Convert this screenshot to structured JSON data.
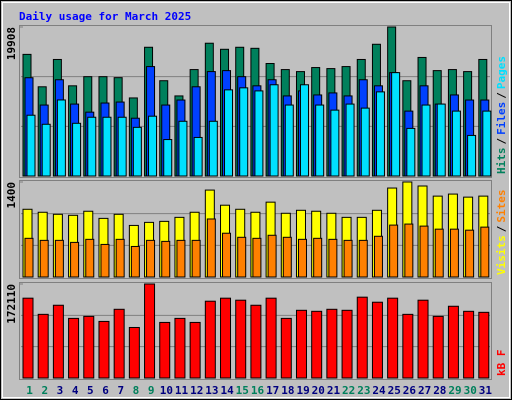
{
  "chart_data": [
    {
      "type": "bar",
      "title": "Daily usage for March 2025",
      "ylim": [
        0,
        19908
      ],
      "yticks": [
        19908
      ],
      "separator": "/",
      "series": [
        {
          "name": "Hits",
          "color": "#00805c",
          "values": [
            16250,
            11920,
            15570,
            12050,
            13270,
            13270,
            13140,
            10430,
            17200,
            12730,
            10700,
            14220,
            17740,
            16930,
            17200,
            17060,
            15030,
            14220,
            13950,
            14490,
            14350,
            14620,
            15570,
            17600,
            19908,
            12730,
            15840,
            14080,
            14220,
            13950,
            15570
          ]
        },
        {
          "name": "Files",
          "color": "#0040ff",
          "values": [
            13130,
            9480,
            12860,
            9610,
            8530,
            9750,
            9880,
            7720,
            14620,
            9480,
            10150,
            11920,
            13950,
            14080,
            13270,
            12050,
            12860,
            10700,
            11370,
            10830,
            11100,
            10700,
            12860,
            12050,
            13810,
            8670,
            12050,
            9610,
            10830,
            10150,
            10150
          ]
        },
        {
          "name": "Pages",
          "color": "#00e0ff",
          "values": [
            8120,
            6910,
            10160,
            7040,
            7850,
            7850,
            7850,
            6500,
            7990,
            4870,
            7310,
            5150,
            7310,
            11510,
            11780,
            11370,
            12190,
            9480,
            12190,
            9480,
            8800,
            9610,
            9070,
            11240,
            13810,
            6360,
            9480,
            9610,
            8670,
            5420,
            8670
          ]
        }
      ]
    },
    {
      "type": "bar",
      "ylim": [
        0,
        1400
      ],
      "yticks": [
        1400
      ],
      "separator": "/",
      "series": [
        {
          "name": "Visits",
          "color": "#ffff00",
          "values": [
            998,
            954,
            924,
            909,
            969,
            864,
            924,
            760,
            805,
            820,
            879,
            954,
            1281,
            1058,
            998,
            954,
            1103,
            939,
            983,
            969,
            939,
            879,
            879,
            983,
            1311,
            1400,
            1341,
            1192,
            1222,
            1177,
            1192
          ]
        },
        {
          "name": "Sites",
          "color": "#ff8000",
          "values": [
            570,
            540,
            540,
            510,
            555,
            480,
            555,
            450,
            540,
            525,
            540,
            540,
            855,
            645,
            585,
            570,
            615,
            585,
            555,
            570,
            555,
            540,
            540,
            600,
            765,
            780,
            750,
            705,
            705,
            690,
            735
          ]
        }
      ]
    },
    {
      "type": "bar",
      "ylim": [
        0,
        172110
      ],
      "yticks": [
        172110
      ],
      "categories": [
        "1",
        "2",
        "3",
        "4",
        "5",
        "6",
        "7",
        "8",
        "9",
        "10",
        "11",
        "12",
        "13",
        "14",
        "15",
        "16",
        "17",
        "18",
        "19",
        "20",
        "21",
        "22",
        "23",
        "24",
        "25",
        "26",
        "27",
        "28",
        "29",
        "30",
        "31"
      ],
      "category_colors": [
        "#00805c",
        "#00805c",
        "#000080",
        "#000080",
        "#000080",
        "#000080",
        "#000080",
        "#00805c",
        "#00805c",
        "#000080",
        "#000080",
        "#000080",
        "#000080",
        "#000080",
        "#00805c",
        "#00805c",
        "#000080",
        "#000080",
        "#000080",
        "#000080",
        "#000080",
        "#00805c",
        "#00805c",
        "#000080",
        "#000080",
        "#000080",
        "#000080",
        "#000080",
        "#00805c",
        "#00805c",
        "#000080"
      ],
      "series": [
        {
          "name": "kB F",
          "color": "#ff0000",
          "values": [
            146150,
            116550,
            133200,
            109150,
            112850,
            103600,
            125800,
            92500,
            172110,
            101750,
            109150,
            101750,
            140600,
            146150,
            142450,
            133200,
            146150,
            109150,
            123950,
            122100,
            125800,
            123950,
            148000,
            138750,
            146150,
            116550,
            142450,
            112850,
            131350,
            122100,
            120250
          ]
        }
      ]
    }
  ]
}
